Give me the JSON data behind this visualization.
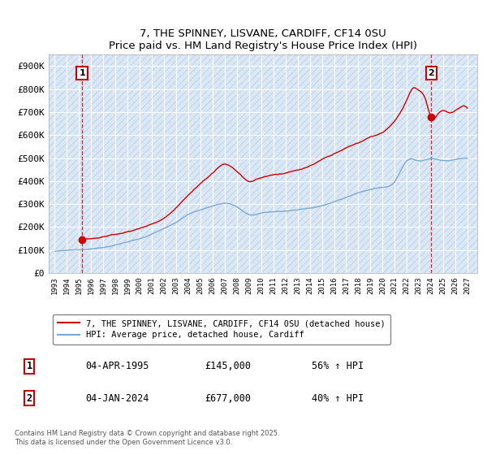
{
  "title": "7, THE SPINNEY, LISVANE, CARDIFF, CF14 0SU",
  "subtitle": "Price paid vs. HM Land Registry's House Price Index (HPI)",
  "ylim": [
    0,
    950000
  ],
  "yticks": [
    0,
    100000,
    200000,
    300000,
    400000,
    500000,
    600000,
    700000,
    800000,
    900000
  ],
  "ytick_labels": [
    "£0",
    "£100K",
    "£200K",
    "£300K",
    "£400K",
    "£500K",
    "£600K",
    "£700K",
    "£800K",
    "£900K"
  ],
  "bg_color": "#dce8f5",
  "hatch_color": "#c5d8ec",
  "grid_color": "#ffffff",
  "line_color_property": "#cc0000",
  "line_color_hpi": "#7aaad4",
  "transaction1_date": "04-APR-1995",
  "transaction1_price": 145000,
  "transaction1_label": "£145,000",
  "transaction1_pct": "56% ↑ HPI",
  "transaction2_date": "04-JAN-2024",
  "transaction2_price": 677000,
  "transaction2_label": "£677,000",
  "transaction2_pct": "40% ↑ HPI",
  "legend_property": "7, THE SPINNEY, LISVANE, CARDIFF, CF14 0SU (detached house)",
  "legend_hpi": "HPI: Average price, detached house, Cardiff",
  "footnote": "Contains HM Land Registry data © Crown copyright and database right 2025.\nThis data is licensed under the Open Government Licence v3.0.",
  "xlim_start": 1992.5,
  "xlim_end": 2027.8,
  "t1_x": 1995.25,
  "t1_y": 145000,
  "t2_x": 2024.02,
  "t2_y": 677000
}
